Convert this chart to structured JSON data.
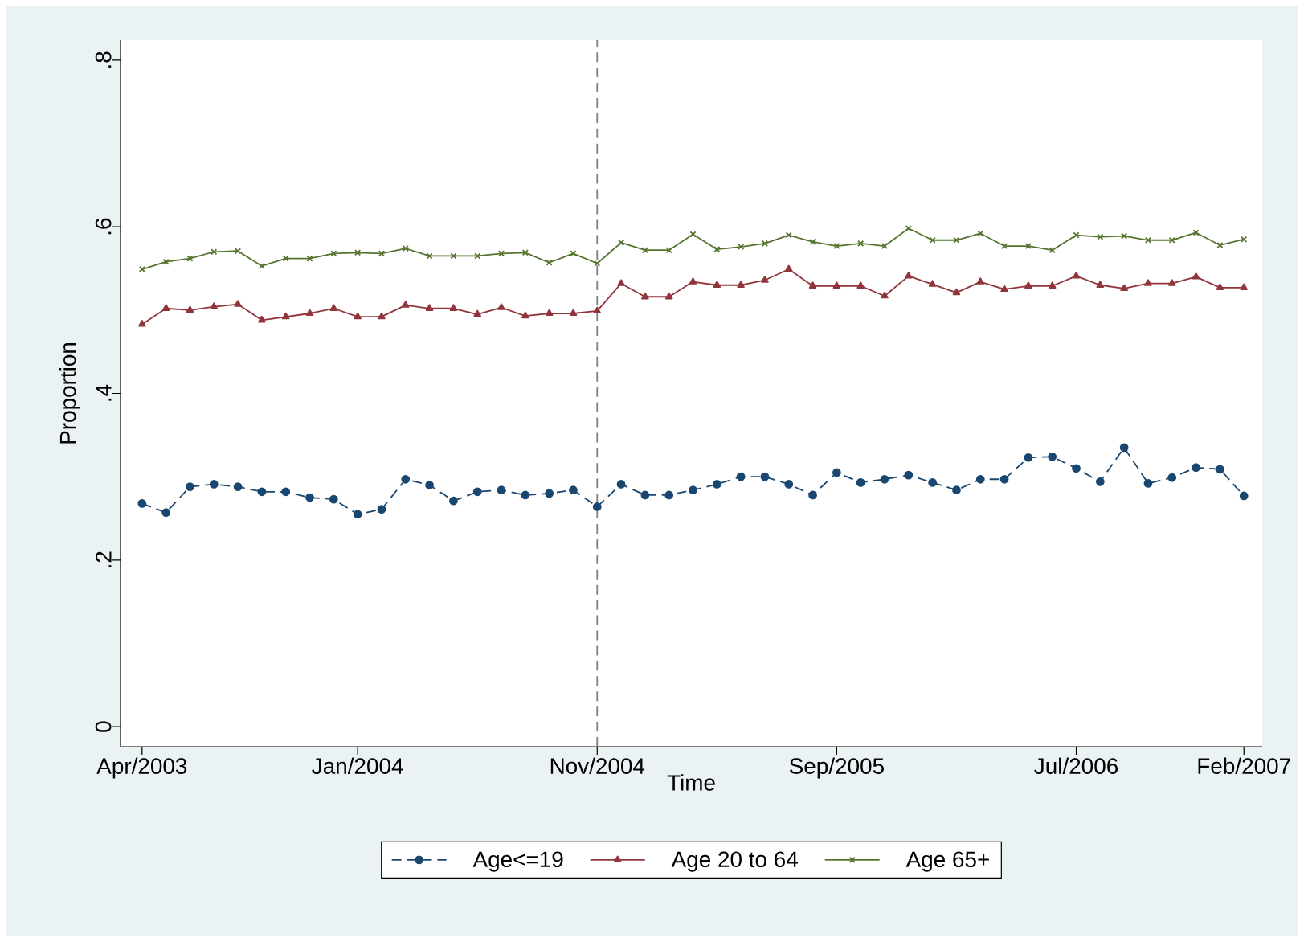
{
  "chart_data": {
    "type": "line",
    "xlabel": "Time",
    "ylabel": "Proportion",
    "x": [
      "2003-04",
      "2003-05",
      "2003-06",
      "2003-07",
      "2003-08",
      "2003-09",
      "2003-10",
      "2003-11",
      "2003-12",
      "2004-01",
      "2004-02",
      "2004-03",
      "2004-04",
      "2004-05",
      "2004-06",
      "2004-07",
      "2004-08",
      "2004-09",
      "2004-10",
      "2004-11",
      "2004-12",
      "2005-01",
      "2005-02",
      "2005-03",
      "2005-04",
      "2005-05",
      "2005-06",
      "2005-07",
      "2005-08",
      "2005-09",
      "2005-10",
      "2005-11",
      "2005-12",
      "2006-01",
      "2006-02",
      "2006-03",
      "2006-04",
      "2006-05",
      "2006-06",
      "2006-07",
      "2006-08",
      "2006-09",
      "2006-10",
      "2006-11",
      "2006-12",
      "2007-01",
      "2007-02"
    ],
    "series": [
      {
        "name": "Age<=19",
        "color": "#1a476f",
        "marker": "circle",
        "line_style": "dashed",
        "values": [
          0.268,
          0.257,
          0.288,
          0.291,
          0.288,
          0.282,
          0.282,
          0.275,
          0.273,
          0.255,
          0.261,
          0.297,
          0.29,
          0.271,
          0.282,
          0.284,
          0.278,
          0.28,
          0.284,
          0.264,
          0.291,
          0.278,
          0.278,
          0.284,
          0.291,
          0.3,
          0.3,
          0.291,
          0.278,
          0.305,
          0.293,
          0.297,
          0.302,
          0.293,
          0.284,
          0.297,
          0.297,
          0.323,
          0.324,
          0.31,
          0.294,
          0.335,
          0.292,
          0.299,
          0.311,
          0.309,
          0.277
        ]
      },
      {
        "name": "Age 20 to 64",
        "color": "#90353b",
        "marker": "triangle",
        "line_style": "solid",
        "values": [
          0.483,
          0.502,
          0.5,
          0.504,
          0.507,
          0.488,
          0.492,
          0.496,
          0.502,
          0.492,
          0.492,
          0.506,
          0.502,
          0.502,
          0.495,
          0.503,
          0.493,
          0.496,
          0.496,
          0.499,
          0.532,
          0.516,
          0.516,
          0.534,
          0.53,
          0.53,
          0.536,
          0.549,
          0.529,
          0.529,
          0.529,
          0.517,
          0.541,
          0.531,
          0.521,
          0.534,
          0.525,
          0.529,
          0.529,
          0.541,
          0.53,
          0.526,
          0.532,
          0.532,
          0.54,
          0.527,
          0.527
        ]
      },
      {
        "name": "Age 65+",
        "color": "#55752f",
        "marker": "cross",
        "line_style": "solid",
        "values": [
          0.549,
          0.558,
          0.562,
          0.57,
          0.571,
          0.553,
          0.562,
          0.562,
          0.568,
          0.569,
          0.568,
          0.574,
          0.565,
          0.565,
          0.565,
          0.568,
          0.569,
          0.557,
          0.568,
          0.556,
          0.581,
          0.572,
          0.572,
          0.591,
          0.573,
          0.576,
          0.58,
          0.59,
          0.582,
          0.577,
          0.58,
          0.577,
          0.598,
          0.584,
          0.584,
          0.592,
          0.577,
          0.577,
          0.572,
          0.59,
          0.588,
          0.589,
          0.584,
          0.584,
          0.593,
          0.578,
          0.585
        ]
      }
    ],
    "xlim": [
      "2003-03-04",
      "2007-02-24"
    ],
    "xticks": [
      {
        "value": "2003-04",
        "label": "Apr/2003"
      },
      {
        "value": "2004-01",
        "label": "Jan/2004"
      },
      {
        "value": "2004-11",
        "label": "Nov/2004"
      },
      {
        "value": "2005-09",
        "label": "Sep/2005"
      },
      {
        "value": "2006-07",
        "label": "Jul/2006"
      },
      {
        "value": "2007-02",
        "label": "Feb/2007"
      }
    ],
    "ylim": [
      -0.024,
      0.824
    ],
    "yticks": [
      0,
      {
        "value": 0.2,
        "label": ".2"
      },
      {
        "value": 0.4,
        "label": ".4"
      },
      {
        "value": 0.6,
        "label": ".6"
      },
      {
        "value": 0.8,
        "label": ".8"
      }
    ],
    "ref_lines": [
      {
        "axis": "x",
        "value": "2004-11",
        "color": "#808080",
        "line_style": "dashed"
      }
    ],
    "grid": false,
    "legend": "bottom"
  }
}
